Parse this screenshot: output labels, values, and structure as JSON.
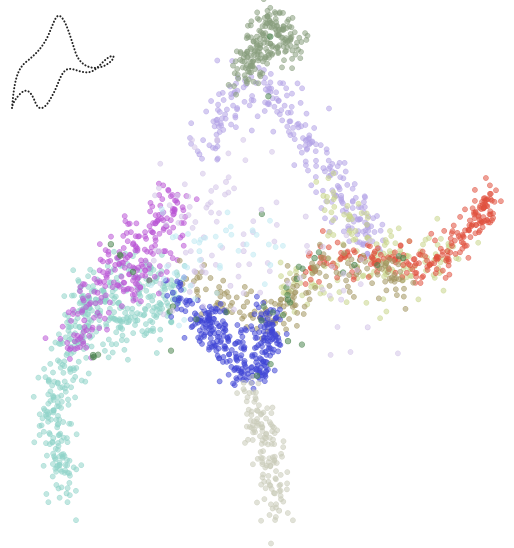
{
  "chart_data": {
    "type": "scatter",
    "title": "",
    "xlabel": "",
    "ylabel": "",
    "axes_visible": false,
    "grid": false,
    "legend": "none",
    "inset_icon": "dotted-curve-outline-icon",
    "inset_color": "#222222",
    "point_opacity": 0.55,
    "series": [
      {
        "color": "#8fd3c9",
        "size": 2,
        "values": [
          [
            0.6,
            0.5
          ],
          [
            0.4,
            0.9
          ],
          [
            0.3,
            1.3
          ],
          [
            0.3,
            1.7
          ],
          [
            0.4,
            2.1
          ],
          [
            0.6,
            2.5
          ],
          [
            0.9,
            2.9
          ],
          [
            1.3,
            3.1
          ],
          [
            1.8,
            3.0
          ],
          [
            2.2,
            3.0
          ],
          [
            2.7,
            3.25
          ],
          [
            3.0,
            3.3
          ],
          [
            2.4,
            3.6
          ],
          [
            1.6,
            3.7
          ],
          [
            1.0,
            3.2
          ]
        ],
        "spread": 0.22,
        "points_per_anchor": 30
      },
      {
        "color": "#b955d6",
        "size": 2,
        "values": [
          [
            0.7,
            2.6
          ],
          [
            1.0,
            3.0
          ],
          [
            1.3,
            3.4
          ],
          [
            1.7,
            3.8
          ],
          [
            2.1,
            4.1
          ],
          [
            2.6,
            4.4
          ],
          [
            3.1,
            4.7
          ],
          [
            2.8,
            4.0
          ],
          [
            2.2,
            3.6
          ]
        ],
        "spread": 0.2,
        "points_per_anchor": 26
      },
      {
        "color": "#b3a3e6",
        "size": 2,
        "values": [
          [
            3.6,
            5.4
          ],
          [
            4.0,
            5.9
          ],
          [
            4.4,
            6.3
          ],
          [
            5.2,
            6.3
          ],
          [
            5.6,
            6.0
          ],
          [
            6.0,
            5.6
          ],
          [
            6.4,
            5.2
          ],
          [
            6.8,
            4.8
          ],
          [
            7.1,
            4.5
          ],
          [
            7.4,
            4.2
          ]
        ],
        "spread": 0.22,
        "points_per_anchor": 24
      },
      {
        "color": "#889e7d",
        "size": 2,
        "values": [
          [
            4.6,
            6.8
          ],
          [
            4.9,
            7.1
          ],
          [
            5.2,
            7.3
          ],
          [
            5.5,
            7.2
          ],
          [
            5.7,
            6.9
          ],
          [
            5.2,
            7.0
          ],
          [
            4.7,
            6.6
          ]
        ],
        "spread": 0.16,
        "points_per_anchor": 28
      },
      {
        "color": "#c9d68c",
        "size": 2,
        "values": [
          [
            6.4,
            4.8
          ],
          [
            7.0,
            4.5
          ],
          [
            7.6,
            4.1
          ],
          [
            8.2,
            3.9
          ],
          [
            8.8,
            3.8
          ],
          [
            9.4,
            3.9
          ],
          [
            6.2,
            3.5
          ],
          [
            5.5,
            3.4
          ],
          [
            7.8,
            3.8
          ]
        ],
        "spread": 0.24,
        "points_per_anchor": 18
      },
      {
        "color": "#e0503e",
        "size": 2,
        "values": [
          [
            6.0,
            3.7
          ],
          [
            6.8,
            3.9
          ],
          [
            7.5,
            3.9
          ],
          [
            8.2,
            3.8
          ],
          [
            8.8,
            3.8
          ],
          [
            9.2,
            4.0
          ],
          [
            9.6,
            4.3
          ],
          [
            9.9,
            4.5
          ],
          [
            10.1,
            4.65
          ]
        ],
        "spread": 0.14,
        "points_per_anchor": 24
      },
      {
        "color": "#a39660",
        "size": 2,
        "values": [
          [
            3.3,
            3.6
          ],
          [
            4.0,
            3.4
          ],
          [
            4.6,
            3.2
          ],
          [
            5.1,
            3.0
          ],
          [
            5.5,
            3.2
          ],
          [
            5.8,
            3.5
          ],
          [
            6.4,
            3.8
          ],
          [
            7.2,
            3.7
          ],
          [
            8.0,
            3.6
          ]
        ],
        "spread": 0.18,
        "points_per_anchor": 18
      },
      {
        "color": "#3f46d6",
        "size": 2,
        "values": [
          [
            3.0,
            3.4
          ],
          [
            3.5,
            3.1
          ],
          [
            4.0,
            2.7
          ],
          [
            4.4,
            2.3
          ],
          [
            4.8,
            2.2
          ],
          [
            5.1,
            2.4
          ],
          [
            5.3,
            2.8
          ],
          [
            5.1,
            3.1
          ],
          [
            4.6,
            2.6
          ],
          [
            3.8,
            3.0
          ]
        ],
        "spread": 0.14,
        "points_per_anchor": 30
      },
      {
        "color": "#c9cbb8",
        "size": 2,
        "values": [
          [
            4.6,
            2.1
          ],
          [
            4.9,
            1.7
          ],
          [
            5.1,
            1.3
          ],
          [
            5.2,
            0.9
          ],
          [
            5.3,
            0.5
          ],
          [
            5.4,
            0.25
          ],
          [
            5.0,
            1.5
          ]
        ],
        "spread": 0.17,
        "points_per_anchor": 18
      },
      {
        "color": "#4e8752",
        "size": 2.2,
        "values": [
          [
            1.6,
            4.1
          ],
          [
            2.1,
            3.7
          ],
          [
            3.0,
            3.2
          ],
          [
            5.0,
            3.0
          ],
          [
            5.6,
            3.3
          ],
          [
            5.8,
            3.6
          ],
          [
            6.2,
            3.9
          ],
          [
            7.1,
            3.8
          ],
          [
            8.2,
            3.9
          ],
          [
            4.9,
            2.2
          ],
          [
            5.2,
            7.1
          ],
          [
            5.6,
            2.7
          ],
          [
            1.2,
            2.5
          ]
        ],
        "spread": 0.06,
        "points_per_anchor": 2
      },
      {
        "color": "#d3c4e8",
        "size": 2,
        "values": [
          [
            2.7,
            4.0
          ],
          [
            3.2,
            4.5
          ],
          [
            3.7,
            4.2
          ],
          [
            4.2,
            5.0
          ],
          [
            4.6,
            4.0
          ],
          [
            5.0,
            4.6
          ],
          [
            3.5,
            3.7
          ],
          [
            2.9,
            3.8
          ],
          [
            4.3,
            3.5
          ],
          [
            6.0,
            4.5
          ],
          [
            6.8,
            3.3
          ],
          [
            7.4,
            2.9
          ],
          [
            4.0,
            5.6
          ],
          [
            3.1,
            4.8
          ]
        ],
        "spread": 0.45,
        "points_per_anchor": 6
      },
      {
        "color": "#bfe9f2",
        "size": 2,
        "values": [
          [
            3.0,
            4.2
          ],
          [
            3.6,
            4.0
          ],
          [
            4.2,
            4.3
          ],
          [
            4.8,
            4.3
          ],
          [
            3.4,
            3.5
          ],
          [
            2.8,
            3.6
          ],
          [
            5.2,
            3.8
          ]
        ],
        "spread": 0.4,
        "points_per_anchor": 5
      }
    ]
  }
}
